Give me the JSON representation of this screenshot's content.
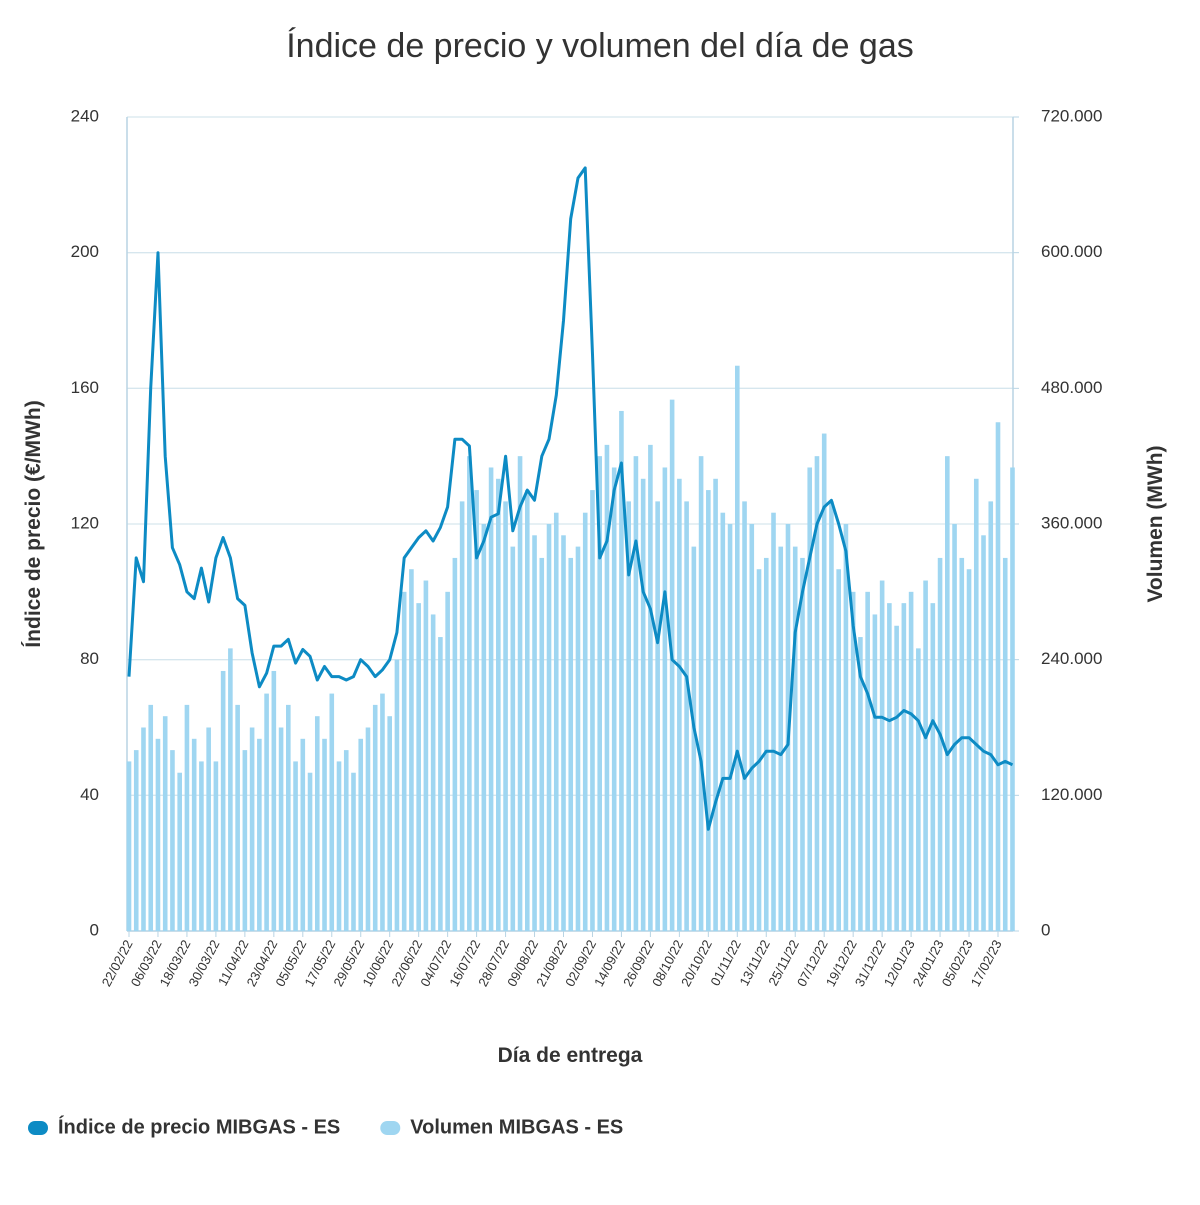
{
  "chart_data": {
    "type": "bar-line",
    "title": "Índice de precio y volumen del día de gas",
    "x_label": "Día de entrega",
    "y_label": "Índice de precio (€/MWh)",
    "y2_label": "Volumen (MWh)",
    "categories": [
      "22/02/22",
      null,
      null,
      null,
      "06/03/22",
      null,
      null,
      null,
      "18/03/22",
      null,
      null,
      null,
      "30/03/22",
      null,
      null,
      null,
      "11/04/22",
      null,
      null,
      null,
      "23/04/22",
      null,
      null,
      null,
      "05/05/22",
      null,
      null,
      null,
      "17/05/22",
      null,
      null,
      null,
      "29/05/22",
      null,
      null,
      null,
      "10/06/22",
      null,
      null,
      null,
      "22/06/22",
      null,
      null,
      null,
      "04/07/22",
      null,
      null,
      null,
      "16/07/22",
      null,
      null,
      null,
      "28/07/22",
      null,
      null,
      null,
      "09/08/22",
      null,
      null,
      null,
      "21/08/22",
      null,
      null,
      null,
      "02/09/22",
      null,
      null,
      null,
      "14/09/22",
      null,
      null,
      null,
      "26/09/22",
      null,
      null,
      null,
      "08/10/22",
      null,
      null,
      null,
      "20/10/22",
      null,
      null,
      null,
      "01/11/22",
      null,
      null,
      null,
      "13/11/22",
      null,
      null,
      null,
      "25/11/22",
      null,
      null,
      null,
      "07/12/22",
      null,
      null,
      null,
      "19/12/22",
      null,
      null,
      null,
      "31/12/22",
      null,
      null,
      null,
      "12/01/23",
      null,
      null,
      null,
      "24/01/23",
      null,
      null,
      null,
      "05/02/23",
      null,
      null,
      null,
      "17/02/23",
      null,
      null
    ],
    "series": [
      {
        "name": "Volumen MIBGAS - ES",
        "color": "#9fd6f1",
        "kind": "bar",
        "axis": "y2",
        "values": [
          150000,
          160000,
          180000,
          200000,
          170000,
          190000,
          160000,
          140000,
          200000,
          170000,
          150000,
          180000,
          150000,
          230000,
          250000,
          200000,
          160000,
          180000,
          170000,
          210000,
          230000,
          180000,
          200000,
          150000,
          170000,
          140000,
          190000,
          170000,
          210000,
          150000,
          160000,
          140000,
          170000,
          180000,
          200000,
          210000,
          190000,
          240000,
          300000,
          320000,
          290000,
          310000,
          280000,
          260000,
          300000,
          330000,
          380000,
          420000,
          390000,
          360000,
          410000,
          400000,
          380000,
          340000,
          420000,
          390000,
          350000,
          330000,
          360000,
          370000,
          350000,
          330000,
          340000,
          370000,
          390000,
          420000,
          430000,
          410000,
          460000,
          380000,
          420000,
          400000,
          430000,
          380000,
          410000,
          470000,
          400000,
          380000,
          340000,
          420000,
          390000,
          400000,
          370000,
          360000,
          500000,
          380000,
          360000,
          320000,
          330000,
          370000,
          340000,
          360000,
          340000,
          330000,
          410000,
          420000,
          440000,
          380000,
          320000,
          360000,
          300000,
          260000,
          300000,
          280000,
          310000,
          290000,
          270000,
          290000,
          300000,
          250000,
          310000,
          290000,
          330000,
          420000,
          360000,
          330000,
          320000,
          400000,
          350000,
          380000,
          450000,
          330000,
          410000
        ]
      },
      {
        "name": "Índice de precio MIBGAS - ES",
        "color": "#0d8bc4",
        "kind": "line",
        "values": [
          75,
          110,
          103,
          160,
          200,
          140,
          113,
          108,
          100,
          98,
          107,
          97,
          110,
          116,
          110,
          98,
          96,
          82,
          72,
          76,
          84,
          84,
          86,
          79,
          83,
          81,
          74,
          78,
          75,
          75,
          74,
          75,
          80,
          78,
          75,
          77,
          80,
          88,
          110,
          113,
          116,
          118,
          115,
          119,
          125,
          145,
          145,
          143,
          110,
          115,
          122,
          123,
          140,
          118,
          125,
          130,
          127,
          140,
          145,
          158,
          180,
          210,
          222,
          225,
          170,
          110,
          115,
          130,
          138,
          105,
          115,
          100,
          95,
          85,
          100,
          80,
          78,
          75,
          60,
          50,
          30,
          38,
          45,
          45,
          53,
          45,
          48,
          50,
          53,
          53,
          52,
          55,
          88,
          100,
          110,
          120,
          125,
          127,
          120,
          112,
          90,
          75,
          70,
          63,
          63,
          62,
          63,
          65,
          64,
          62,
          57,
          62,
          58,
          52,
          55,
          57,
          57,
          55,
          53,
          52,
          49,
          50,
          49
        ]
      }
    ],
    "ylim": [
      0,
      240
    ],
    "yticks": [
      0,
      40,
      80,
      120,
      160,
      200,
      240
    ],
    "y2lim": [
      0,
      720000
    ],
    "y2ticks": [
      0,
      {
        "value": 120000,
        "label": "120.000"
      },
      {
        "value": 240000,
        "label": "240.000"
      },
      {
        "value": 360000,
        "label": "360.000"
      },
      {
        "value": 480000,
        "label": "480.000"
      },
      {
        "value": 600000,
        "label": "600.000"
      },
      {
        "value": 720000,
        "label": "720.000"
      }
    ],
    "grid": true,
    "legend": "bottom-left"
  }
}
